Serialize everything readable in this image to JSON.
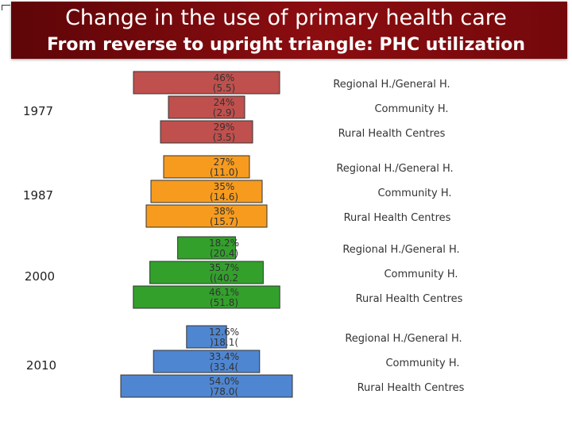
{
  "header": {
    "title": "Change in the use of primary health care",
    "subtitle": "From reverse to upright triangle: PHC utilization"
  },
  "colors": {
    "header": "#8b0d10",
    "1977": "#c0504d",
    "1987": "#f79b1e",
    "2000": "#33a02c",
    "2010": "#4f86d1"
  },
  "chart_data": {
    "type": "bar",
    "orientation": "horizontal-centered",
    "title": "Change in the use of primary health care",
    "subtitle": "From reverse to upright triangle: PHC utilization",
    "categories": [
      "Regional H./General H.",
      "Community H.",
      "Rural Health Centres"
    ],
    "groups": [
      {
        "year": "1977",
        "pct": [
          46,
          24,
          29
        ],
        "labels": [
          [
            "46%",
            "(5.5)"
          ],
          [
            "24%",
            "(2.9)"
          ],
          [
            "29%",
            "(3.5)"
          ]
        ]
      },
      {
        "year": "1987",
        "pct": [
          27,
          35,
          38
        ],
        "labels": [
          [
            "27%",
            "(11.0)"
          ],
          [
            "35%",
            "(14.6)"
          ],
          [
            "38%",
            "(15.7)"
          ]
        ]
      },
      {
        "year": "2000",
        "pct": [
          18.2,
          35.7,
          46.1
        ],
        "labels": [
          [
            "18.2%",
            "(20.4)"
          ],
          [
            "35.7%",
            "((40.2"
          ],
          [
            "46.1%",
            "(51.8)"
          ]
        ]
      },
      {
        "year": "2010",
        "pct": [
          12.6,
          33.4,
          54.0
        ],
        "labels": [
          [
            "12.6%",
            ")18.1("
          ],
          [
            "33.4%",
            "(33.4("
          ],
          [
            "54.0%",
            ")78.0("
          ]
        ]
      }
    ]
  }
}
